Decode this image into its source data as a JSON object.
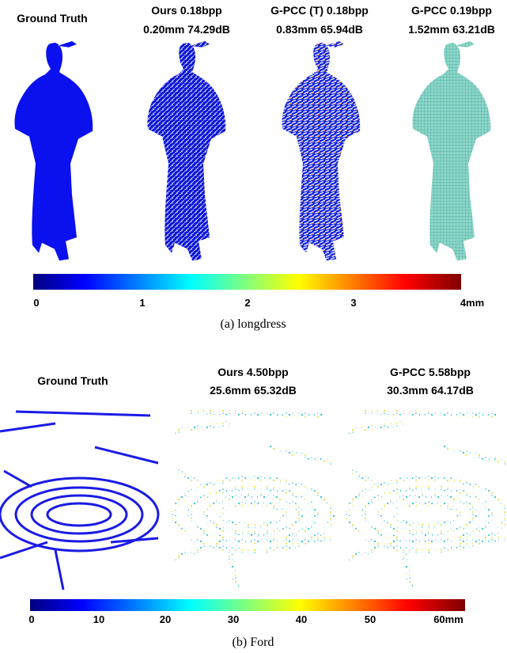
{
  "panel_a": {
    "headers": [
      [
        "Ground Truth"
      ],
      [
        "Ours 0.18bpp",
        "0.20mm 74.29dB"
      ],
      [
        "G-PCC (T) 0.18bpp",
        "0.83mm 65.94dB"
      ],
      [
        "G-PCC 0.19bpp",
        "1.52mm 63.21dB"
      ]
    ],
    "colorbar_ticks": [
      "0",
      "1",
      "2",
      "3",
      "4mm"
    ],
    "caption": "(a) longdress"
  },
  "panel_b": {
    "headers": [
      [
        "Ground Truth"
      ],
      [
        "Ours  4.50bpp",
        "25.6mm 65.32dB"
      ],
      [
        "G-PCC 5.58bpp",
        "30.3mm 64.17dB"
      ]
    ],
    "colorbar_ticks": [
      "0",
      "10",
      "20",
      "30",
      "40",
      "50",
      "60mm"
    ],
    "caption": "(b) Ford"
  }
}
